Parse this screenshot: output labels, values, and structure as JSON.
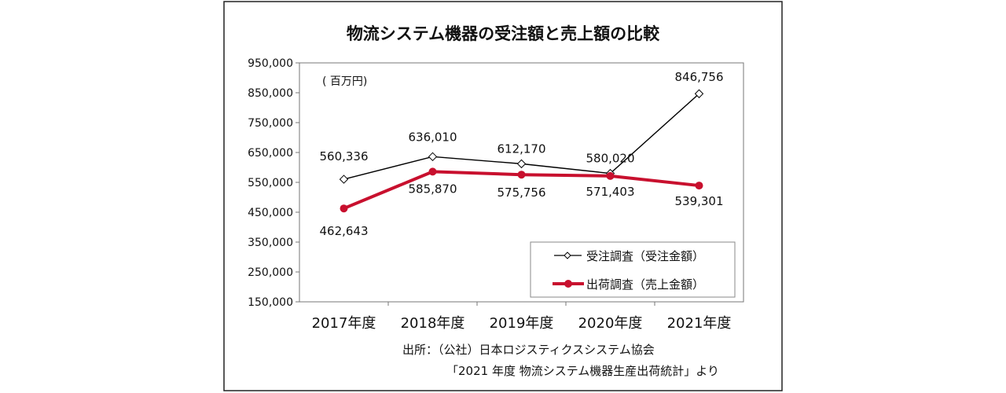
{
  "chart_data": {
    "type": "line",
    "title": "物流システム機器の受注額と売上額の比較",
    "unit_label": "( 百万円)",
    "categories": [
      "2017年度",
      "2018年度",
      "2019年度",
      "2020年度",
      "2021年度"
    ],
    "ylim": [
      150000,
      950000
    ],
    "yticks": [
      150000,
      250000,
      350000,
      450000,
      550000,
      650000,
      750000,
      850000,
      950000
    ],
    "ytick_labels": [
      "150,000",
      "250,000",
      "350,000",
      "450,000",
      "550,000",
      "650,000",
      "750,000",
      "850,000",
      "950,000"
    ],
    "series": [
      {
        "name": "受注調査（受注金額）",
        "color": "#000000",
        "marker": "diamond",
        "values": [
          560336,
          636010,
          612170,
          580020,
          846756
        ],
        "labels": [
          "560,336",
          "636,010",
          "612,170",
          "580,020",
          "846,756"
        ]
      },
      {
        "name": "出荷調査（売上金額）",
        "color": "#c8102e",
        "marker": "circle",
        "values": [
          462643,
          585870,
          575756,
          571403,
          539301
        ],
        "labels": [
          "462,643",
          "585,870",
          "575,756",
          "571,403",
          "539,301"
        ]
      }
    ],
    "legend": "bottom-right",
    "source_line1": "出所：（公社）日本ロジスティクスシステム協会",
    "source_line2": "「2021 年度 物流システム機器生産出荷統計」より"
  }
}
